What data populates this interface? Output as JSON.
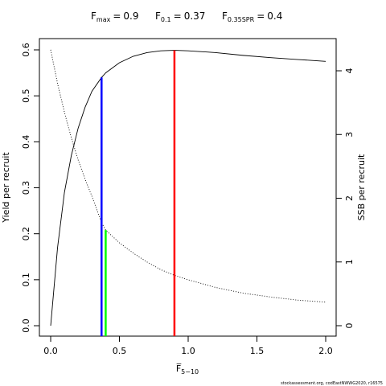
{
  "chart_data": {
    "type": "line",
    "reference_lines": [
      {
        "label": "F",
        "subscript": "max",
        "relation": "=",
        "value": 0.9,
        "y": 0.599,
        "axis": "y",
        "color": "#ff0000"
      },
      {
        "label": "F",
        "subscript": "0.1",
        "relation": "=",
        "value": 0.37,
        "y": 0.54,
        "axis": "y",
        "color": "#0000ff"
      },
      {
        "label": "F",
        "subscript": "0.35SPR",
        "relation": "=",
        "value": 0.4,
        "y": 1.5,
        "axis": "y2",
        "color": "#00ff00"
      }
    ],
    "xlabel": "F̅",
    "xlabel_subscript": "5−10",
    "ylabel": "Yield per recruit",
    "y2label": "SSB per recruit",
    "footer": "stockassessment.org, codEastNWWG2020, r16575",
    "x": [
      0,
      0.05,
      0.1,
      0.15,
      0.2,
      0.25,
      0.3,
      0.37,
      0.4,
      0.5,
      0.6,
      0.7,
      0.8,
      0.9,
      1.0,
      1.2,
      1.4,
      1.6,
      1.8,
      2.0
    ],
    "series": [
      {
        "color": "#000000",
        "axis": "y",
        "dash": "solid",
        "values": [
          0,
          0.17,
          0.29,
          0.37,
          0.43,
          0.475,
          0.51,
          0.54,
          0.55,
          0.572,
          0.586,
          0.594,
          0.598,
          0.599,
          0.598,
          0.594,
          0.588,
          0.583,
          0.579,
          0.575
        ]
      },
      {
        "color": "#000000",
        "axis": "y2",
        "dash": "dotted",
        "values": [
          4.33,
          3.8,
          3.35,
          2.95,
          2.6,
          2.3,
          2.03,
          1.62,
          1.5,
          1.3,
          1.14,
          1.0,
          0.88,
          0.79,
          0.72,
          0.6,
          0.51,
          0.45,
          0.4,
          0.37
        ]
      }
    ],
    "xlim": [
      -0.082,
      2.076
    ],
    "xticks": [
      {
        "value": 0,
        "label": "0.0"
      },
      {
        "value": 0.5,
        "label": "0.5"
      },
      {
        "value": 1,
        "label": "1.0"
      },
      {
        "value": 1.5,
        "label": "1.5"
      },
      {
        "value": 2,
        "label": "2.0"
      }
    ],
    "ylim": [
      -0.0227,
      0.6245
    ],
    "yticks": [
      {
        "value": 0,
        "label": "0.0"
      },
      0.1,
      0.2,
      0.3,
      0.4,
      0.5,
      0.6
    ],
    "y2lim": [
      -0.164,
      4.505
    ],
    "y2ticks": [
      0,
      1,
      2,
      3,
      4
    ]
  }
}
